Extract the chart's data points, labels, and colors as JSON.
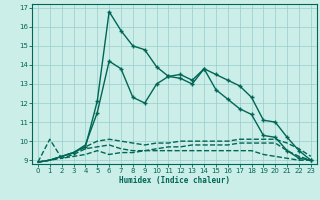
{
  "xlabel": "Humidex (Indice chaleur)",
  "bg_color": "#cceee8",
  "grid_color": "#99cccc",
  "line_color": "#006655",
  "xlim": [
    -0.5,
    23.5
  ],
  "ylim": [
    8.8,
    17.2
  ],
  "xticks": [
    0,
    1,
    2,
    3,
    4,
    5,
    6,
    7,
    8,
    9,
    10,
    11,
    12,
    13,
    14,
    15,
    16,
    17,
    18,
    19,
    20,
    21,
    22,
    23
  ],
  "yticks": [
    9,
    10,
    11,
    12,
    13,
    14,
    15,
    16,
    17
  ],
  "series": [
    [
      8.9,
      10.1,
      9.1,
      9.2,
      9.3,
      9.5,
      9.3,
      9.4,
      9.4,
      9.5,
      9.6,
      9.7,
      9.7,
      9.8,
      9.8,
      9.8,
      9.8,
      9.9,
      9.9,
      9.9,
      9.9,
      9.5,
      9.2,
      9.0
    ],
    [
      8.9,
      9.0,
      9.1,
      9.3,
      9.6,
      9.7,
      9.8,
      9.6,
      9.5,
      9.5,
      9.5,
      9.5,
      9.5,
      9.5,
      9.5,
      9.5,
      9.5,
      9.5,
      9.5,
      9.3,
      9.2,
      9.1,
      9.0,
      9.0
    ],
    [
      8.9,
      9.0,
      9.2,
      9.4,
      9.7,
      10.0,
      10.1,
      10.0,
      9.9,
      9.8,
      9.9,
      9.9,
      10.0,
      10.0,
      10.0,
      10.0,
      10.0,
      10.1,
      10.1,
      10.1,
      10.1,
      9.9,
      9.6,
      9.2
    ],
    [
      8.9,
      9.0,
      9.2,
      9.4,
      9.7,
      12.1,
      16.8,
      15.8,
      15.0,
      14.8,
      13.9,
      13.4,
      13.5,
      13.2,
      13.8,
      13.5,
      13.2,
      12.9,
      12.3,
      11.1,
      11.0,
      10.2,
      9.5,
      9.0
    ],
    [
      8.9,
      9.0,
      9.2,
      9.4,
      9.8,
      11.5,
      14.2,
      13.8,
      12.3,
      12.0,
      13.0,
      13.4,
      13.3,
      13.0,
      13.8,
      12.7,
      12.2,
      11.7,
      11.4,
      10.3,
      10.2,
      9.5,
      9.1,
      9.0
    ]
  ],
  "linestyles": [
    "--",
    "--",
    "--",
    "-",
    "-"
  ],
  "marker_indices": [
    [],
    [],
    [],
    [
      3,
      4,
      5,
      6,
      7,
      8,
      9,
      10,
      11,
      12,
      13,
      14,
      15,
      16,
      17,
      18,
      19,
      20,
      21,
      22,
      23
    ],
    [
      5,
      6,
      7,
      8,
      9,
      10,
      11,
      12,
      13,
      14,
      15,
      16,
      17,
      18,
      19,
      20,
      21,
      22,
      23
    ]
  ]
}
